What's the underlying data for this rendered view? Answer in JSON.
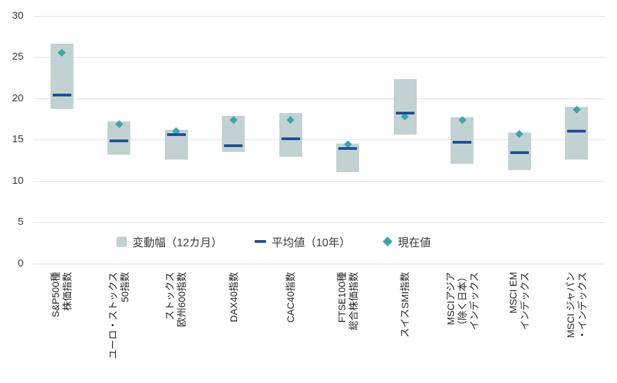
{
  "colors": {
    "background": "#ffffff",
    "range_fill": "#c2d1d2",
    "average_line": "#1e509b",
    "current_marker": "#36a7ab",
    "gridline": "#e0e2e2",
    "axis_text": "#3d3d3d"
  },
  "chart_data": {
    "type": "bar",
    "subtype": "floating-range-with-markers",
    "title": "",
    "xlabel": "",
    "ylabel": "",
    "ylim": [
      0,
      30
    ],
    "yticks": [
      0,
      5,
      10,
      15,
      20,
      25,
      30
    ],
    "grid": true,
    "legend_position": "bottom",
    "legend": [
      "変動幅（12カ月）",
      "平均値（10年）",
      "現在値"
    ],
    "categories": [
      "S&P500種株価指数",
      "ユーロ・ストックス50指数",
      "ストックス欧州600指数",
      "DAX40指数",
      "CAC40指数",
      "FTSE100種総合株価指数",
      "スイスSMI指数",
      "MSCIアジア（除く日本）インデックス",
      "MSCI EMインデックス",
      "MSCI ジャパン・インデックス"
    ],
    "category_label_lines": [
      [
        "S&P500種",
        "株価指数"
      ],
      [
        "ユーロ・ストックス",
        "50指数"
      ],
      [
        "ストックス",
        "欧州600指数"
      ],
      [
        "DAX40指数"
      ],
      [
        "CAC40指数"
      ],
      [
        "FTSE100種",
        "総合株価指数"
      ],
      [
        "スイスSMI指数"
      ],
      [
        "MSCIアジア",
        "（除く日本）",
        "インデックス"
      ],
      [
        "MSCI EM",
        "インデックス"
      ],
      [
        "MSCI ジャパン",
        "・インデックス"
      ]
    ],
    "series": [
      {
        "name": "変動幅（12カ月）",
        "marker": "box",
        "low": [
          18.7,
          13.2,
          12.6,
          13.5,
          12.9,
          11.1,
          15.6,
          12.1,
          11.3,
          12.6
        ],
        "high": [
          26.6,
          17.2,
          16.2,
          17.9,
          18.2,
          14.5,
          22.3,
          17.7,
          15.9,
          19.0
        ]
      },
      {
        "name": "平均値（10年）",
        "marker": "dash",
        "values": [
          20.4,
          14.9,
          15.6,
          14.3,
          15.1,
          13.9,
          18.2,
          14.7,
          13.4,
          16.0
        ]
      },
      {
        "name": "現在値",
        "marker": "diamond",
        "values": [
          25.5,
          16.9,
          16.0,
          17.4,
          17.4,
          14.4,
          17.8,
          17.4,
          15.7,
          18.6
        ]
      }
    ]
  }
}
